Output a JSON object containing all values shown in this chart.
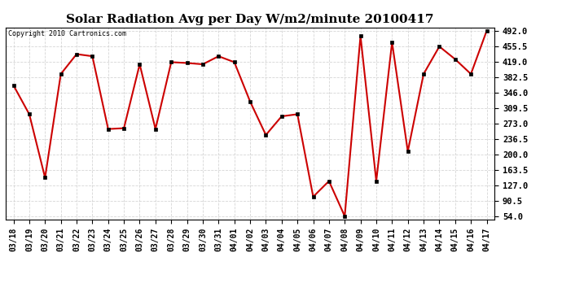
{
  "title": "Solar Radiation Avg per Day W/m2/minute 20100417",
  "copyright": "Copyright 2010 Cartronics.com",
  "dates": [
    "03/18",
    "03/19",
    "03/20",
    "03/21",
    "03/22",
    "03/23",
    "03/24",
    "03/25",
    "03/26",
    "03/27",
    "03/28",
    "03/29",
    "03/30",
    "03/31",
    "04/01",
    "04/02",
    "04/03",
    "04/04",
    "04/05",
    "04/06",
    "04/07",
    "04/08",
    "04/09",
    "04/10",
    "04/11",
    "04/12",
    "04/13",
    "04/14",
    "04/15",
    "04/16",
    "04/17"
  ],
  "values": [
    363,
    295,
    145,
    390,
    437,
    432,
    260,
    262,
    413,
    260,
    418,
    416,
    413,
    432,
    418,
    325,
    246,
    290,
    295,
    100,
    137,
    54,
    480,
    137,
    465,
    207,
    390,
    455,
    425,
    390,
    492
  ],
  "ylim_min": 54.0,
  "ylim_max": 492.0,
  "yticks": [
    54.0,
    90.5,
    127.0,
    163.5,
    200.0,
    236.5,
    273.0,
    309.5,
    346.0,
    382.5,
    419.0,
    455.5,
    492.0
  ],
  "line_color": "#cc0000",
  "marker_color": "#000000",
  "bg_color": "#ffffff",
  "grid_color": "#cccccc",
  "title_fontsize": 11,
  "tick_fontsize": 7,
  "copyright_fontsize": 6
}
